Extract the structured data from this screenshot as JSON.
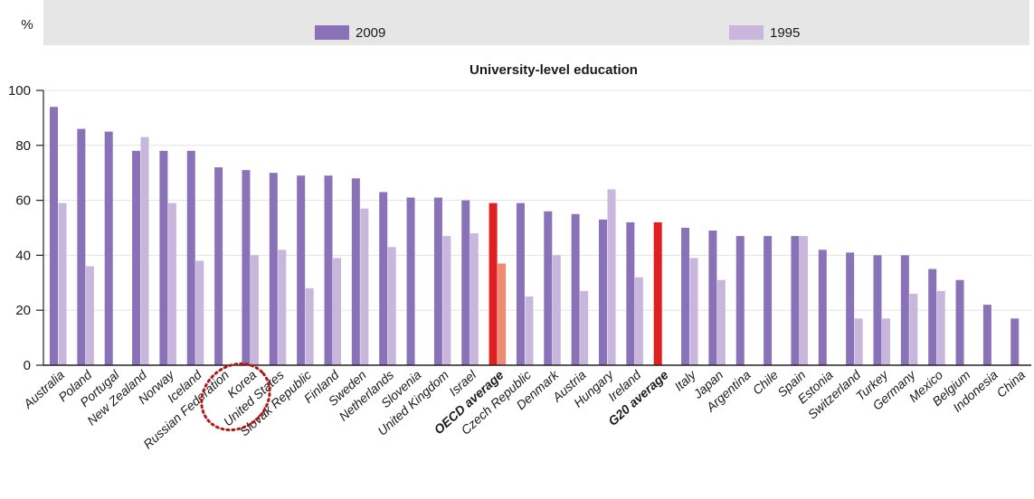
{
  "chart_data": {
    "type": "bar",
    "title": "University-level education",
    "ylabel": "%",
    "xlabel": "",
    "ylim": [
      0,
      100
    ],
    "yticks": [
      0,
      20,
      40,
      60,
      80,
      100
    ],
    "grid": true,
    "legend_position": "top",
    "categories": [
      "Australia",
      "Poland",
      "Portugal",
      "New Zealand",
      "Norway",
      "Iceland",
      "Russian Federation",
      "Korea",
      "United States",
      "Slovak Republic",
      "Finland",
      "Sweden",
      "Netherlands",
      "Slovenia",
      "United Kingdom",
      "Israel",
      "OECD average",
      "Czech Republic",
      "Denmark",
      "Austria",
      "Hungary",
      "Ireland",
      "G20 average",
      "Italy",
      "Japan",
      "Argentina",
      "Chile",
      "Spain",
      "Estonia",
      "Switzerland",
      "Turkey",
      "Germany",
      "Mexico",
      "Belgium",
      "Indonesia",
      "China"
    ],
    "highlighted_categories": [
      "OECD average",
      "G20 average"
    ],
    "circled_category": "Korea",
    "series": [
      {
        "name": "2009",
        "color": "#8a72b8",
        "highlight_color": "#e02020",
        "values": [
          94,
          86,
          85,
          78,
          78,
          78,
          72,
          71,
          70,
          69,
          69,
          68,
          63,
          61,
          61,
          60,
          59,
          59,
          56,
          55,
          53,
          52,
          52,
          50,
          49,
          47,
          47,
          47,
          42,
          41,
          40,
          40,
          35,
          31,
          22,
          17
        ]
      },
      {
        "name": "1995",
        "color": "#c9b6dc",
        "highlight_color": "#f08a70",
        "values": [
          59,
          36,
          null,
          83,
          59,
          38,
          null,
          40,
          42,
          28,
          39,
          57,
          43,
          null,
          47,
          48,
          37,
          25,
          40,
          27,
          64,
          32,
          null,
          39,
          31,
          null,
          null,
          47,
          null,
          17,
          17,
          26,
          27,
          null,
          null,
          null
        ]
      }
    ]
  }
}
